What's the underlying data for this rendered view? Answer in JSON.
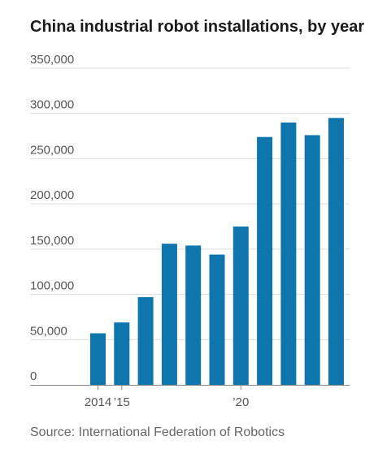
{
  "title": "China industrial robot installations, by year",
  "source": "Source: International Federation of Robotics",
  "colors": {
    "bar": "#0f75ad",
    "grid": "#dcdcdc",
    "axis": "#888888",
    "text": "#555555"
  },
  "chart_data": {
    "type": "bar",
    "title": "China industrial robot installations, by year",
    "xlabel": "",
    "ylabel": "",
    "categories": [
      "2014",
      "2015",
      "2016",
      "2017",
      "2018",
      "2019",
      "2020",
      "2021",
      "2022",
      "2023",
      "2024"
    ],
    "x_tick_labels": [
      {
        "category": "2014",
        "label": "2014"
      },
      {
        "category": "2015",
        "label": "’15"
      },
      {
        "category": "2020",
        "label": "’20"
      }
    ],
    "values": [
      57000,
      69000,
      97000,
      156000,
      154000,
      144000,
      175000,
      274000,
      290000,
      276000,
      295000
    ],
    "ylim": [
      0,
      350000
    ],
    "y_ticks": [
      {
        "value": 0,
        "label": "0"
      },
      {
        "value": 50000,
        "label": "50,000"
      },
      {
        "value": 100000,
        "label": "100,000"
      },
      {
        "value": 150000,
        "label": "150,000"
      },
      {
        "value": 200000,
        "label": "200,000"
      },
      {
        "value": 250000,
        "label": "250,000"
      },
      {
        "value": 300000,
        "label": "300,000"
      },
      {
        "value": 350000,
        "label": "350,000"
      }
    ],
    "grid": true
  }
}
